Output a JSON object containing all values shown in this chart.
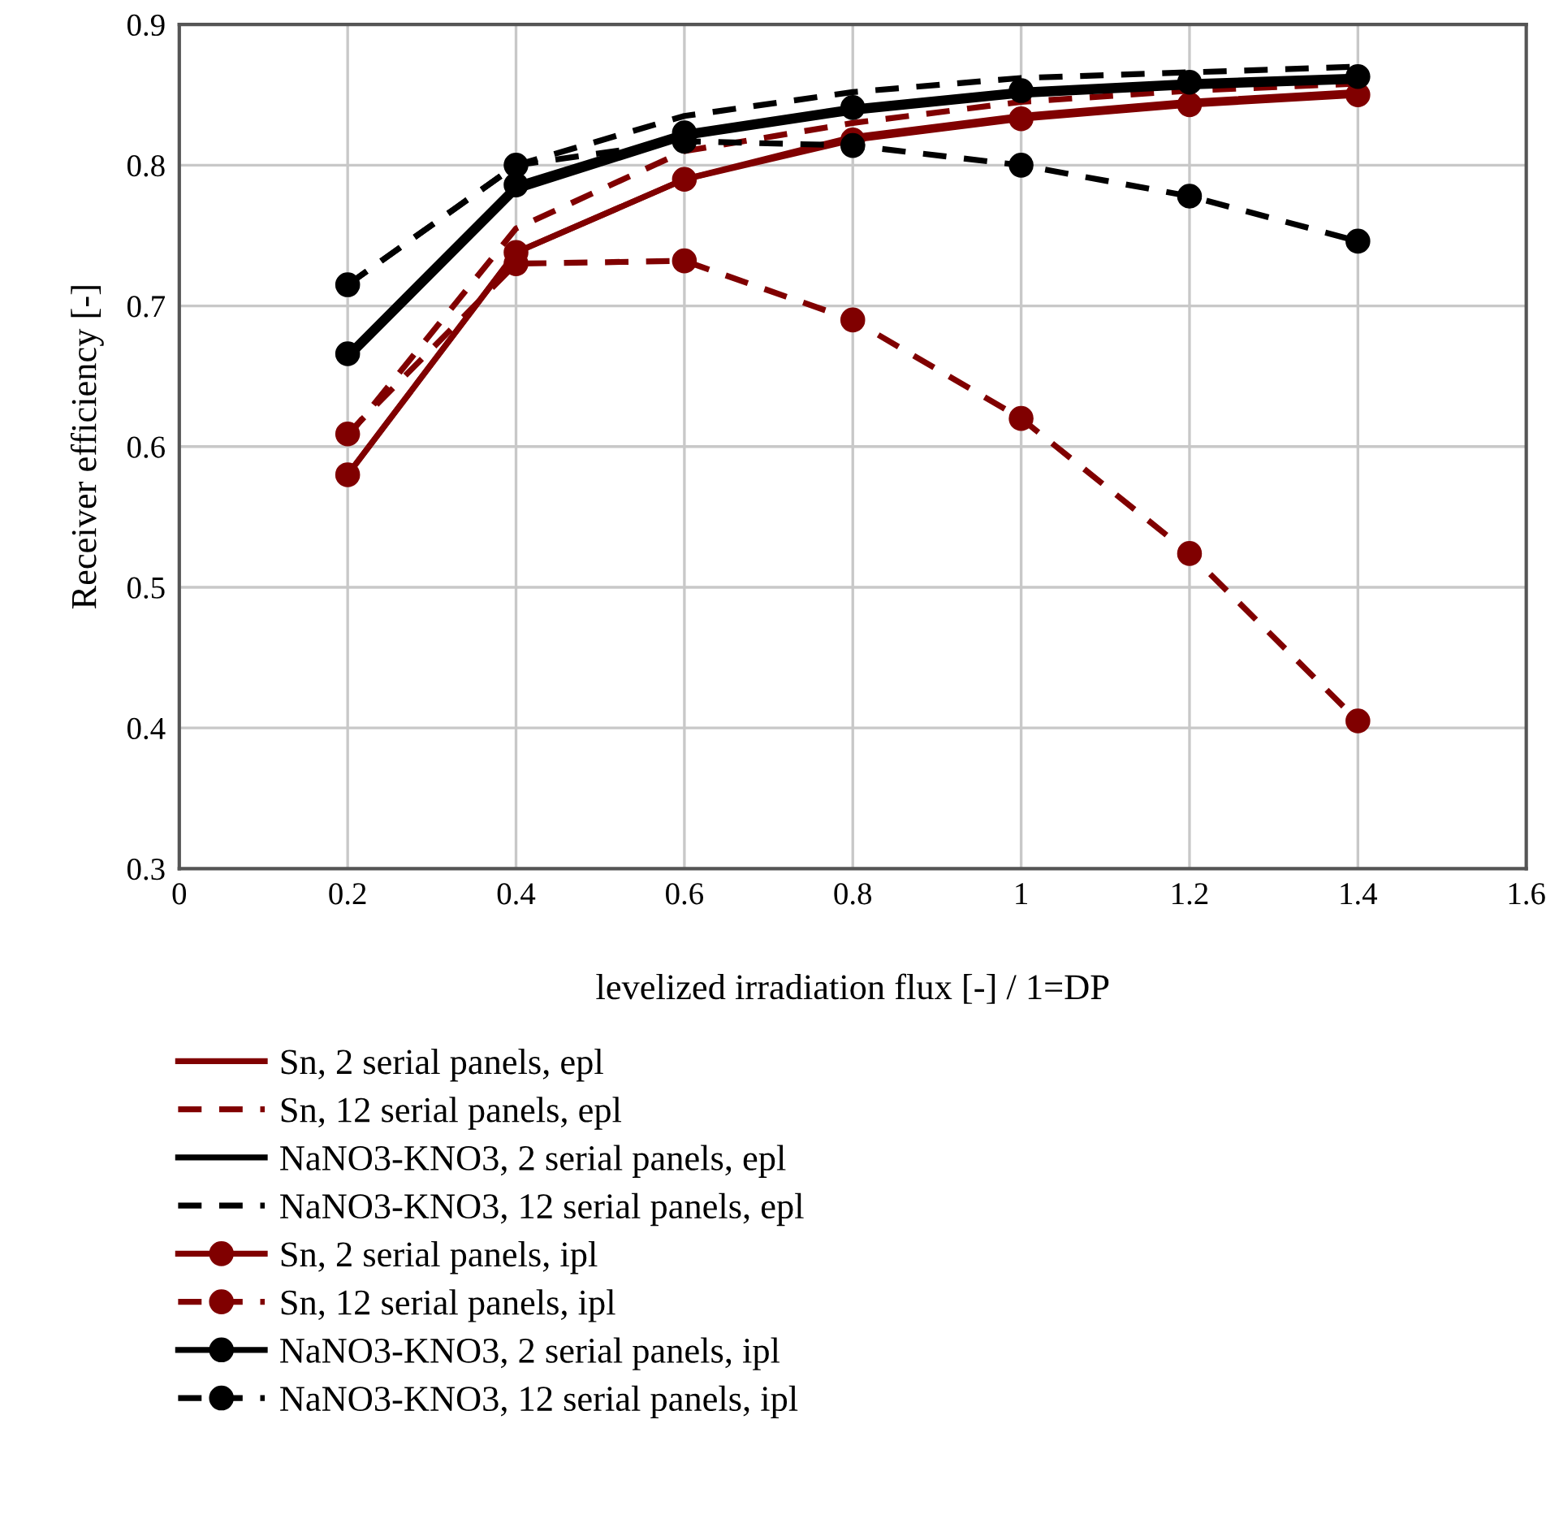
{
  "chart_data": {
    "type": "line",
    "xlabel": "levelized irradiation flux [-] / 1=DP",
    "ylabel": "Receiver efficiency [-]",
    "x": [
      0.2,
      0.4,
      0.6,
      0.8,
      1,
      1.2,
      1.4
    ],
    "xlim": [
      0,
      1.6
    ],
    "xticks": [
      0,
      0.2,
      0.4,
      0.6,
      0.8,
      1,
      1.2,
      1.4,
      1.6
    ],
    "ylim": [
      0.3,
      0.9
    ],
    "yticks": [
      0.3,
      0.4,
      0.5,
      0.6,
      0.7,
      0.8,
      0.9
    ],
    "grid": true,
    "legend": "bottom",
    "series": [
      {
        "name": "Sn, 2 serial panels, epl",
        "color": "#800000",
        "line_style": "solid",
        "marker": "none",
        "values": [
          0.58,
          0.738,
          0.79,
          0.82,
          0.835,
          0.845,
          0.852
        ]
      },
      {
        "name": "Sn, 12 serial panels, epl",
        "color": "#800000",
        "line_style": "dashed",
        "marker": "none",
        "values": [
          0.607,
          0.755,
          0.81,
          0.83,
          0.845,
          0.853,
          0.858
        ]
      },
      {
        "name": "NaNO3-KNO3, 2 serial panels, epl",
        "color": "#000000",
        "line_style": "solid",
        "marker": "none",
        "values": [
          0.662,
          0.782,
          0.82,
          0.838,
          0.85,
          0.856,
          0.86
        ]
      },
      {
        "name": "NaNO3-KNO3, 12 serial panels, epl",
        "color": "#000000",
        "line_style": "dashed",
        "marker": "none",
        "values": [
          0.715,
          0.8,
          0.835,
          0.852,
          0.862,
          0.866,
          0.87
        ]
      },
      {
        "name": "Sn, 2 serial panels, ipl",
        "color": "#800000",
        "line_style": "solid",
        "marker": "circle",
        "values": [
          0.58,
          0.738,
          0.79,
          0.818,
          0.833,
          0.843,
          0.85
        ]
      },
      {
        "name": "Sn, 12 serial panels, ipl",
        "color": "#800000",
        "line_style": "dashed",
        "marker": "circle",
        "values": [
          0.609,
          0.73,
          0.732,
          0.69,
          0.62,
          0.524,
          0.405
        ]
      },
      {
        "name": "NaNO3-KNO3, 2 serial panels, ipl",
        "color": "#000000",
        "line_style": "solid",
        "marker": "circle",
        "values": [
          0.666,
          0.786,
          0.823,
          0.841,
          0.853,
          0.859,
          0.863
        ]
      },
      {
        "name": "NaNO3-KNO3, 12 serial panels, ipl",
        "color": "#000000",
        "line_style": "dashed",
        "marker": "circle",
        "values": [
          0.715,
          0.8,
          0.817,
          0.814,
          0.8,
          0.778,
          0.746
        ]
      }
    ]
  }
}
